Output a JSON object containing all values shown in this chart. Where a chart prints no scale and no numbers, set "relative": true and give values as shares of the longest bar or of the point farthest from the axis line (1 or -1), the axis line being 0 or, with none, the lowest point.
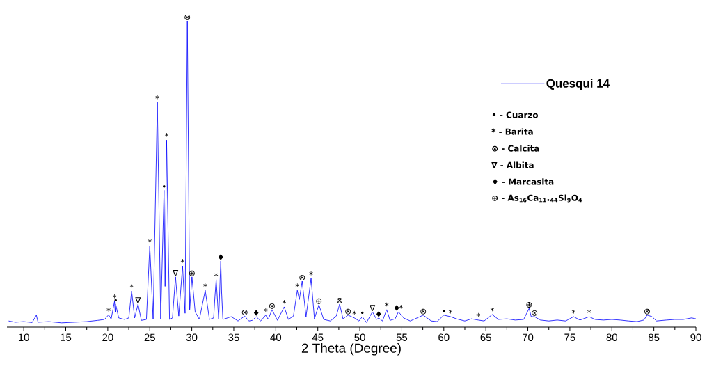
{
  "chart_data": {
    "type": "line",
    "relative": true,
    "xlabel": "2 Theta (Degree)",
    "legend": "top right",
    "xlim": [
      8,
      90
    ],
    "xticks": [
      10,
      15,
      20,
      25,
      30,
      35,
      40,
      45,
      50,
      55,
      60,
      65,
      70,
      75,
      80,
      85,
      90
    ],
    "series": [
      {
        "name": "Quesqui 14",
        "color": "#0000ff",
        "x": [
          8.2,
          9,
          10,
          11,
          11.5,
          11.7,
          13,
          14.5,
          16,
          17.5,
          18.8,
          19.6,
          20.1,
          20.4,
          20.8,
          20.88,
          20.94,
          21.3,
          22.0,
          22.5,
          22.84,
          23.2,
          23.6,
          24.0,
          24.6,
          25.0,
          25.4,
          25.9,
          26.3,
          26.7,
          26.82,
          27.0,
          27.35,
          27.7,
          28.06,
          28.45,
          28.9,
          29.2,
          29.47,
          29.75,
          30.02,
          30.4,
          30.9,
          31.6,
          32.1,
          32.6,
          32.75,
          32.9,
          33.2,
          33.45,
          33.55,
          33.7,
          34.7,
          35.5,
          36.3,
          36.8,
          37.2,
          37.67,
          38.2,
          38.8,
          39.1,
          39.55,
          40.2,
          41.0,
          41.5,
          42.1,
          42.56,
          42.8,
          43.14,
          43.6,
          44.2,
          44.6,
          45.13,
          45.7,
          46.5,
          47.2,
          47.6,
          48.0,
          48.6,
          49.35,
          49.9,
          50.3,
          50.8,
          51.5,
          52.0,
          52.25,
          52.7,
          53.2,
          53.6,
          54.2,
          54.6,
          55.2,
          56.0,
          57.55,
          58.5,
          59.2,
          60.0,
          60.8,
          61.5,
          62.5,
          63.3,
          64.1,
          64.8,
          65.76,
          66.5,
          67.5,
          68.5,
          69.5,
          70.15,
          70.4,
          70.8,
          71.5,
          72.5,
          73.5,
          74.5,
          75.45,
          76.2,
          77.3,
          78,
          79,
          80,
          81,
          82,
          83,
          83.8,
          84.2,
          84.8,
          85.3,
          86.5,
          87.5,
          88.5,
          89.5,
          90
        ],
        "values": [
          0.02,
          0.016,
          0.018,
          0.015,
          0.039,
          0.016,
          0.018,
          0.014,
          0.016,
          0.018,
          0.022,
          0.025,
          0.04,
          0.026,
          0.084,
          0.05,
          0.075,
          0.03,
          0.025,
          0.03,
          0.118,
          0.03,
          0.075,
          0.022,
          0.025,
          0.265,
          0.025,
          0.734,
          0.027,
          0.447,
          0.133,
          0.611,
          0.025,
          0.03,
          0.164,
          0.036,
          0.2,
          0.045,
          1.0,
          0.057,
          0.164,
          0.05,
          0.025,
          0.12,
          0.025,
          0.03,
          0.098,
          0.155,
          0.025,
          0.216,
          0.114,
          0.025,
          0.034,
          0.02,
          0.036,
          0.02,
          0.022,
          0.034,
          0.02,
          0.039,
          0.025,
          0.057,
          0.022,
          0.066,
          0.025,
          0.036,
          0.12,
          0.09,
          0.15,
          0.034,
          0.159,
          0.027,
          0.073,
          0.025,
          0.02,
          0.036,
          0.075,
          0.027,
          0.039,
          0.03,
          0.02,
          0.034,
          0.015,
          0.05,
          0.025,
          0.03,
          0.02,
          0.057,
          0.022,
          0.027,
          0.05,
          0.03,
          0.02,
          0.039,
          0.02,
          0.018,
          0.039,
          0.034,
          0.027,
          0.02,
          0.027,
          0.023,
          0.02,
          0.041,
          0.025,
          0.027,
          0.023,
          0.025,
          0.061,
          0.034,
          0.034,
          0.023,
          0.02,
          0.023,
          0.02,
          0.034,
          0.023,
          0.034,
          0.025,
          0.023,
          0.025,
          0.023,
          0.02,
          0.018,
          0.023,
          0.039,
          0.034,
          0.02,
          0.023,
          0.025,
          0.025,
          0.03,
          0.027
        ]
      }
    ],
    "annotations": [
      {
        "text": "*",
        "x": 20.1,
        "y": 0.04
      },
      {
        "text": "*",
        "x": 20.8,
        "y": 0.084
      },
      {
        "text": "•",
        "x": 20.94,
        "y": 0.075
      },
      {
        "text": "*",
        "x": 22.84,
        "y": 0.118
      },
      {
        "text": "∇",
        "x": 23.6,
        "y": 0.075
      },
      {
        "text": "*",
        "x": 25.0,
        "y": 0.265
      },
      {
        "text": "*",
        "x": 25.9,
        "y": 0.734
      },
      {
        "text": "•",
        "x": 26.7,
        "y": 0.447
      },
      {
        "text": "*",
        "x": 27.0,
        "y": 0.611
      },
      {
        "text": "∇",
        "x": 28.06,
        "y": 0.164
      },
      {
        "text": "*",
        "x": 28.9,
        "y": 0.2
      },
      {
        "text": "⊗",
        "x": 29.47,
        "y": 1.0
      },
      {
        "text": "⊕",
        "x": 30.02,
        "y": 0.164
      },
      {
        "text": "*",
        "x": 31.6,
        "y": 0.12
      },
      {
        "text": "*",
        "x": 32.9,
        "y": 0.155
      },
      {
        "text": "♦",
        "x": 33.45,
        "y": 0.216
      },
      {
        "text": "⊗",
        "x": 36.3,
        "y": 0.036
      },
      {
        "text": "♦",
        "x": 37.67,
        "y": 0.034
      },
      {
        "text": "*",
        "x": 38.8,
        "y": 0.039
      },
      {
        "text": "⊗",
        "x": 39.55,
        "y": 0.057
      },
      {
        "text": "*",
        "x": 41.0,
        "y": 0.066
      },
      {
        "text": "*",
        "x": 42.56,
        "y": 0.12
      },
      {
        "text": "⊗",
        "x": 43.14,
        "y": 0.15
      },
      {
        "text": "*",
        "x": 44.2,
        "y": 0.159
      },
      {
        "text": "⊕",
        "x": 45.13,
        "y": 0.073
      },
      {
        "text": "⊗",
        "x": 47.6,
        "y": 0.075
      },
      {
        "text": "⊗",
        "x": 48.6,
        "y": 0.039
      },
      {
        "text": "*",
        "x": 49.35,
        "y": 0.03
      },
      {
        "text": "•",
        "x": 50.3,
        "y": 0.034
      },
      {
        "text": "∇",
        "x": 51.5,
        "y": 0.05
      },
      {
        "text": "♦",
        "x": 52.25,
        "y": 0.03
      },
      {
        "text": "*",
        "x": 53.2,
        "y": 0.057
      },
      {
        "text": "♦",
        "x": 54.4,
        "y": 0.05
      },
      {
        "text": "*",
        "x": 54.9,
        "y": 0.05
      },
      {
        "text": "⊗",
        "x": 57.55,
        "y": 0.039
      },
      {
        "text": "•",
        "x": 60.0,
        "y": 0.039
      },
      {
        "text": "*",
        "x": 60.8,
        "y": 0.034
      },
      {
        "text": "*",
        "x": 64.1,
        "y": 0.023
      },
      {
        "text": "*",
        "x": 65.76,
        "y": 0.041
      },
      {
        "text": "⊕",
        "x": 70.15,
        "y": 0.061
      },
      {
        "text": "⊗",
        "x": 70.8,
        "y": 0.034
      },
      {
        "text": "*",
        "x": 75.45,
        "y": 0.034
      },
      {
        "text": "*",
        "x": 77.3,
        "y": 0.034
      },
      {
        "text": "⊗",
        "x": 84.2,
        "y": 0.039
      },
      "• - Cuarzo",
      "* - Barita",
      "⊗ - Calcita",
      "∇ - Albita",
      "♦ - Marcasita",
      "⊕ - As$_{16}$Ca$_{11•44}$Si$_{9}$O$_{4}$"
    ]
  }
}
